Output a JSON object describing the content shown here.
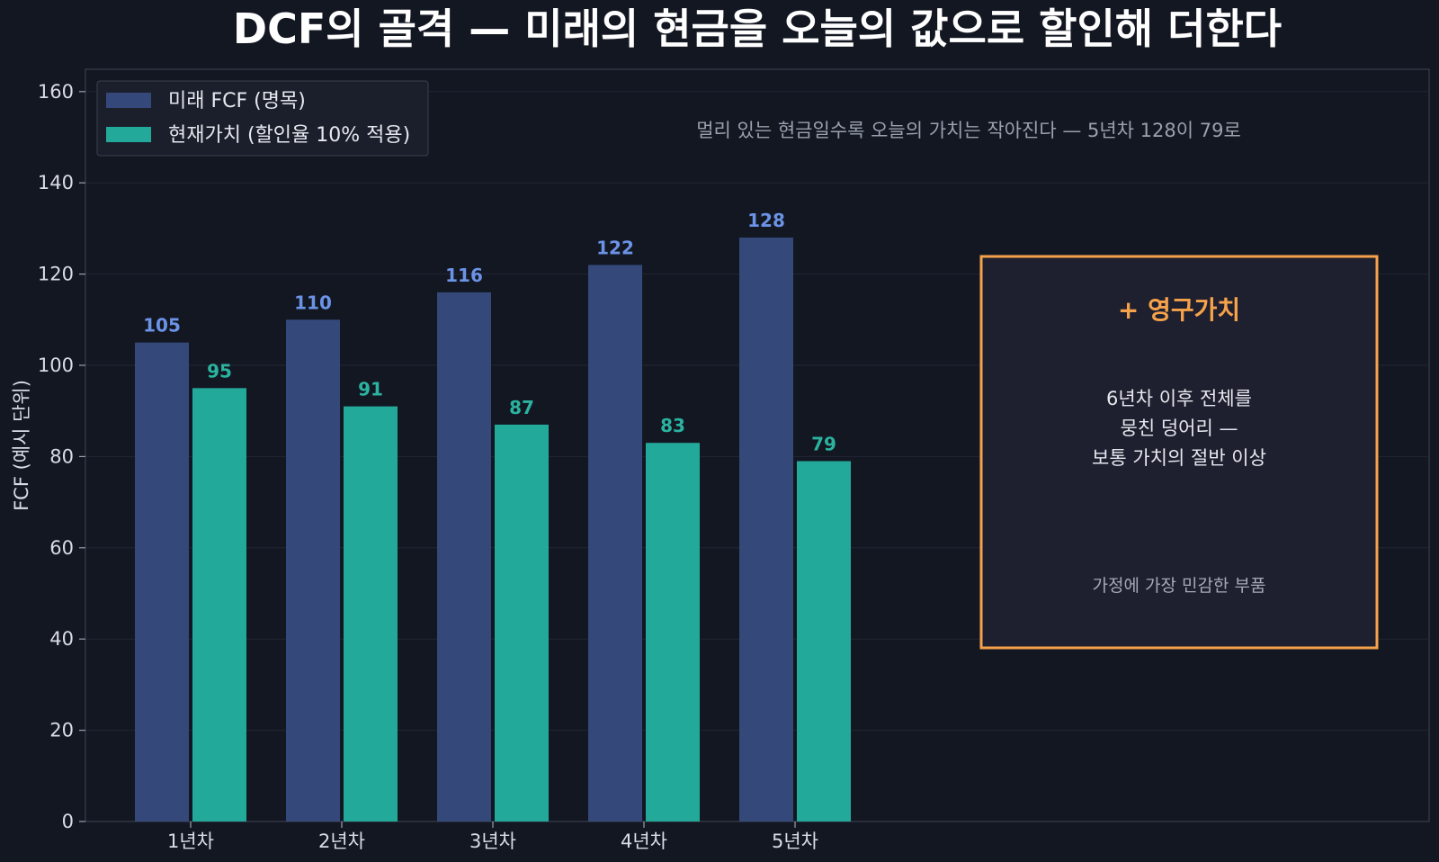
{
  "chart_data": {
    "type": "bar",
    "title": "DCF의 골격 — 미래의 현금을 오늘의 값으로 할인해 더한다",
    "subtitle": "멀리 있는 현금일수록 오늘의 가치는 작아진다 — 5년차 128이 79로",
    "xlabel": "",
    "ylabel": "FCF (예시 단위)",
    "ylim": [
      0,
      165
    ],
    "yticks": [
      0,
      20,
      40,
      60,
      80,
      100,
      120,
      140,
      160
    ],
    "categories": [
      "1년차",
      "2년차",
      "3년차",
      "4년차",
      "5년차"
    ],
    "series": [
      {
        "name": "미래 FCF (명목)",
        "color": "#34497a",
        "label_color": "#6b93e6",
        "values": [
          105,
          110,
          116,
          122,
          128
        ]
      },
      {
        "name": "현재가치 (할인율 10% 적용)",
        "color": "#23a99a",
        "label_color": "#2bb3a0",
        "values": [
          95,
          91,
          87,
          83,
          79
        ]
      }
    ],
    "grid": true,
    "legend_position": "top-left",
    "colors": {
      "background": "#131722",
      "plot_border": "#3a3f4c",
      "grid": "#222735",
      "accent": "#f5a24b"
    }
  },
  "annotation_box": {
    "title": "+ 영구가치",
    "body": [
      "6년차 이후 전체를",
      "뭉친 덩어리 —",
      "보통 가치의 절반 이상"
    ],
    "note": "가정에 가장 민감한 부품"
  }
}
